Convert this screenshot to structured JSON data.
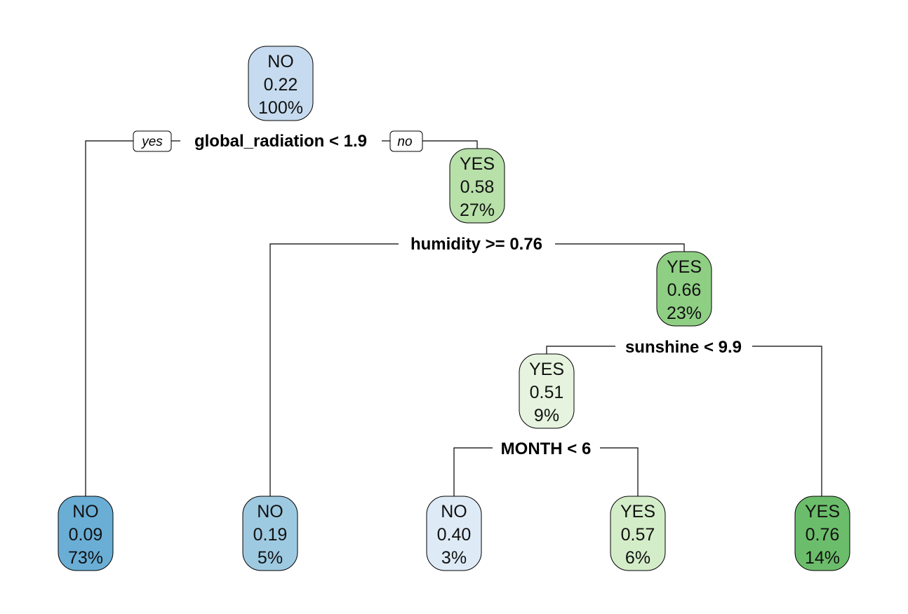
{
  "tree": {
    "branch_tags": {
      "yes": "yes",
      "no": "no"
    },
    "nodes": {
      "root": {
        "class": "NO",
        "prob": "0.22",
        "pct": "100%",
        "fill": "#c6dbef"
      },
      "n_gr_no": {
        "class": "YES",
        "prob": "0.58",
        "pct": "27%",
        "fill": "#b8e0a9"
      },
      "n_hum_no": {
        "class": "YES",
        "prob": "0.66",
        "pct": "23%",
        "fill": "#8fcf84"
      },
      "n_sun_yes": {
        "class": "YES",
        "prob": "0.51",
        "pct": "9%",
        "fill": "#e6f4df"
      },
      "leaf1": {
        "class": "NO",
        "prob": "0.09",
        "pct": "73%",
        "fill": "#6aaed6"
      },
      "leaf2": {
        "class": "NO",
        "prob": "0.19",
        "pct": "5%",
        "fill": "#9ecae1"
      },
      "leaf3": {
        "class": "NO",
        "prob": "0.40",
        "pct": "3%",
        "fill": "#deebf7"
      },
      "leaf4": {
        "class": "YES",
        "prob": "0.57",
        "pct": "6%",
        "fill": "#d4edc9"
      },
      "leaf5": {
        "class": "YES",
        "prob": "0.76",
        "pct": "14%",
        "fill": "#6cbd6b"
      }
    },
    "splits": {
      "s_root": "global_radiation < 1.9",
      "s_hum": "humidity >= 0.76",
      "s_sun": "sunshine < 9.9",
      "s_month": "MONTH < 6"
    }
  }
}
